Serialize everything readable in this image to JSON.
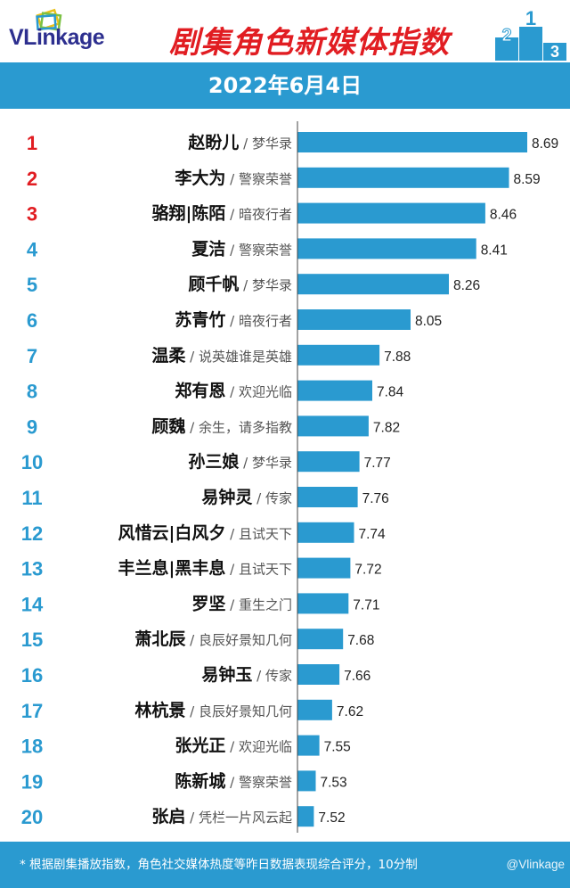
{
  "brand": "VLinkage",
  "title": "剧集角色新媒体指数",
  "date": "2022年6月4日",
  "footnote": "* 根据剧集播放指数，角色社交媒体热度等昨日数据表现综合评分，10分制",
  "watermark": "@Vlinkage",
  "colors": {
    "bar": "#2a9ad0",
    "top3_rank": "#e11d22",
    "rank": "#2a9ad0",
    "title": "#e11d22",
    "logo": "#2d2f8f"
  },
  "chart_data": {
    "type": "bar",
    "orientation": "horizontal",
    "categories": [
      {
        "rank": "1",
        "name": "赵盼儿",
        "show": "梦华录"
      },
      {
        "rank": "2",
        "name": "李大为",
        "show": "警察荣誉"
      },
      {
        "rank": "3",
        "name": "骆翔|陈陌",
        "show": "暗夜行者"
      },
      {
        "rank": "4",
        "name": "夏洁",
        "show": "警察荣誉"
      },
      {
        "rank": "5",
        "name": "顾千帆",
        "show": "梦华录"
      },
      {
        "rank": "6",
        "name": "苏青竹",
        "show": "暗夜行者"
      },
      {
        "rank": "7",
        "name": "温柔",
        "show": "说英雄谁是英雄"
      },
      {
        "rank": "8",
        "name": "郑有恩",
        "show": "欢迎光临"
      },
      {
        "rank": "9",
        "name": "顾魏",
        "show": "余生，请多指教"
      },
      {
        "rank": "10",
        "name": "孙三娘",
        "show": "梦华录"
      },
      {
        "rank": "11",
        "name": "易钟灵",
        "show": "传家"
      },
      {
        "rank": "12",
        "name": "风惜云|白风夕",
        "show": "且试天下"
      },
      {
        "rank": "13",
        "name": "丰兰息|黑丰息",
        "show": "且试天下"
      },
      {
        "rank": "14",
        "name": "罗坚",
        "show": "重生之门"
      },
      {
        "rank": "15",
        "name": "萧北辰",
        "show": "良辰好景知几何"
      },
      {
        "rank": "16",
        "name": "易钟玉",
        "show": "传家"
      },
      {
        "rank": "17",
        "name": "林杭景",
        "show": "良辰好景知几何"
      },
      {
        "rank": "18",
        "name": "张光正",
        "show": "欢迎光临"
      },
      {
        "rank": "19",
        "name": "陈新城",
        "show": "警察荣誉"
      },
      {
        "rank": "20",
        "name": "张启",
        "show": "凭栏一片风云起"
      }
    ],
    "values": [
      "8.69",
      "8.59",
      "8.46",
      "8.41",
      "8.26",
      "8.05",
      "7.88",
      "7.84",
      "7.82",
      "7.77",
      "7.76",
      "7.74",
      "7.72",
      "7.71",
      "7.68",
      "7.66",
      "7.62",
      "7.55",
      "7.53",
      "7.52"
    ],
    "value_axis_min": 7.43
  }
}
